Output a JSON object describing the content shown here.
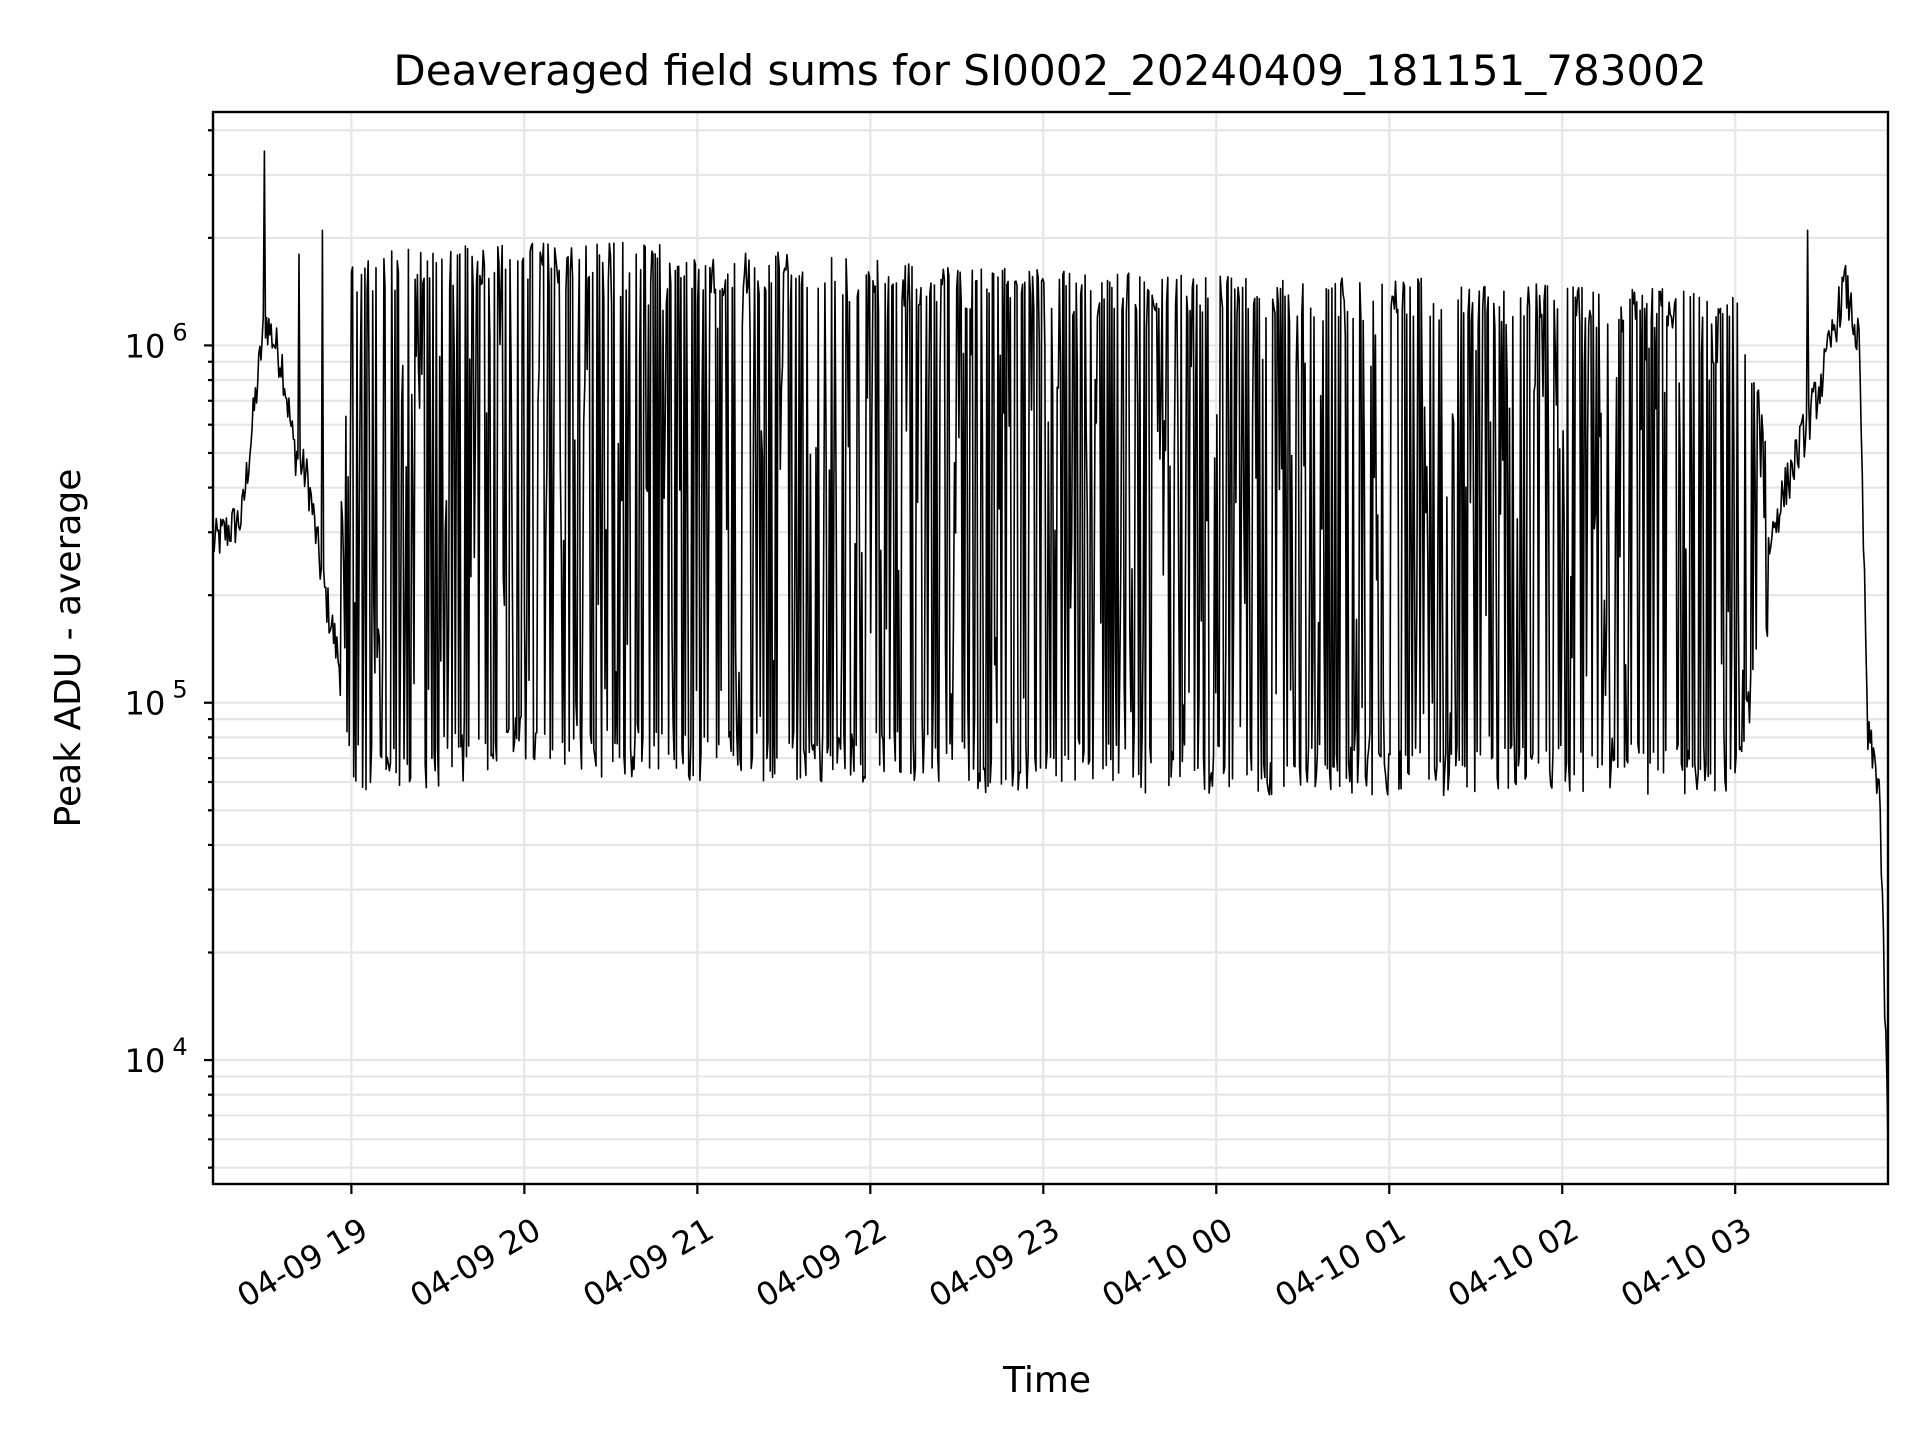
{
  "chart_data": {
    "type": "line",
    "title": "Deaveraged field sums for SI0002_20240409_181151_783002",
    "xlabel": "Time",
    "ylabel": "Peak ADU - average",
    "yscale": "log",
    "xlim": [
      "2024-04-09 18:12",
      "2024-04-10 03:53"
    ],
    "ylim": [
      4500,
      4500000
    ],
    "grid": true,
    "x_tick_labels": [
      "04-09 19",
      "04-09 20",
      "04-09 21",
      "04-09 22",
      "04-09 23",
      "04-10 00",
      "04-10 01",
      "04-10 02",
      "04-10 03"
    ],
    "y_tick_labels": [
      {
        "base": "10",
        "exp": "4",
        "value": 10000
      },
      {
        "base": "10",
        "exp": "5",
        "value": 100000
      },
      {
        "base": "10",
        "exp": "6",
        "value": 1000000
      }
    ],
    "series": [
      {
        "color": "#000000",
        "x": [
          "2024-04-09 18:12",
          "2024-04-09 18:22",
          "2024-04-09 18:30",
          "2024-04-09 18:36",
          "2024-04-09 18:40",
          "2024-04-09 18:45",
          "2024-04-09 18:50",
          "2024-04-09 18:55",
          "2024-04-09 19:00",
          "2024-04-09 19:20",
          "2024-04-09 19:40",
          "2024-04-09 19:55",
          "2024-04-09 20:10",
          "2024-04-09 20:40",
          "2024-04-09 21:10",
          "2024-04-09 21:45",
          "2024-04-09 22:15",
          "2024-04-09 22:45",
          "2024-04-09 23:15",
          "2024-04-09 23:45",
          "2024-04-10 00:15",
          "2024-04-10 00:45",
          "2024-04-10 01:15",
          "2024-04-10 01:45",
          "2024-04-10 02:15",
          "2024-04-10 02:40",
          "2024-04-10 03:00",
          "2024-04-10 03:15",
          "2024-04-10 03:30",
          "2024-04-10 03:38",
          "2024-04-10 03:43",
          "2024-04-10 03:46",
          "2024-04-10 03:50",
          "2024-04-10 03:53"
        ],
        "y": [
          280000,
          330000,
          1200000,
          900000,
          520000,
          420000,
          220000,
          140000,
          80000,
          70000,
          75000,
          95000,
          350000,
          450000,
          600000,
          800000,
          650000,
          500000,
          380000,
          320000,
          300000,
          250000,
          230000,
          200000,
          150000,
          110000,
          110000,
          350000,
          800000,
          1500000,
          1000000,
          80000,
          60000,
          6000
        ],
        "band_low": [
          240000,
          260000,
          1000000,
          800000,
          450000,
          300000,
          180000,
          100000,
          55000,
          55000,
          60000,
          70000,
          60000,
          60000,
          60000,
          60000,
          60000,
          55000,
          55000,
          55000,
          55000,
          55000,
          55000,
          55000,
          55000,
          55000,
          55000,
          200000,
          500000,
          1100000,
          1000000,
          50000,
          50000,
          6000
        ],
        "band_high": [
          320000,
          380000,
          1250000,
          1000000,
          600000,
          500000,
          250000,
          200000,
          1800000,
          1900000,
          1900000,
          1950000,
          1950000,
          1950000,
          1850000,
          1800000,
          1700000,
          1650000,
          1600000,
          1600000,
          1550000,
          1550000,
          1550000,
          1500000,
          1450000,
          1450000,
          1400000,
          450000,
          1000000,
          1650000,
          1200000,
          100000,
          70000,
          10000
        ],
        "spikes": [
          {
            "x": "2024-04-09 18:30",
            "y": 3500000
          },
          {
            "x": "2024-04-09 18:42",
            "y": 1800000
          },
          {
            "x": "2024-04-09 18:50",
            "y": 2100000
          },
          {
            "x": "2024-04-10 03:25",
            "y": 2100000
          }
        ]
      }
    ]
  }
}
